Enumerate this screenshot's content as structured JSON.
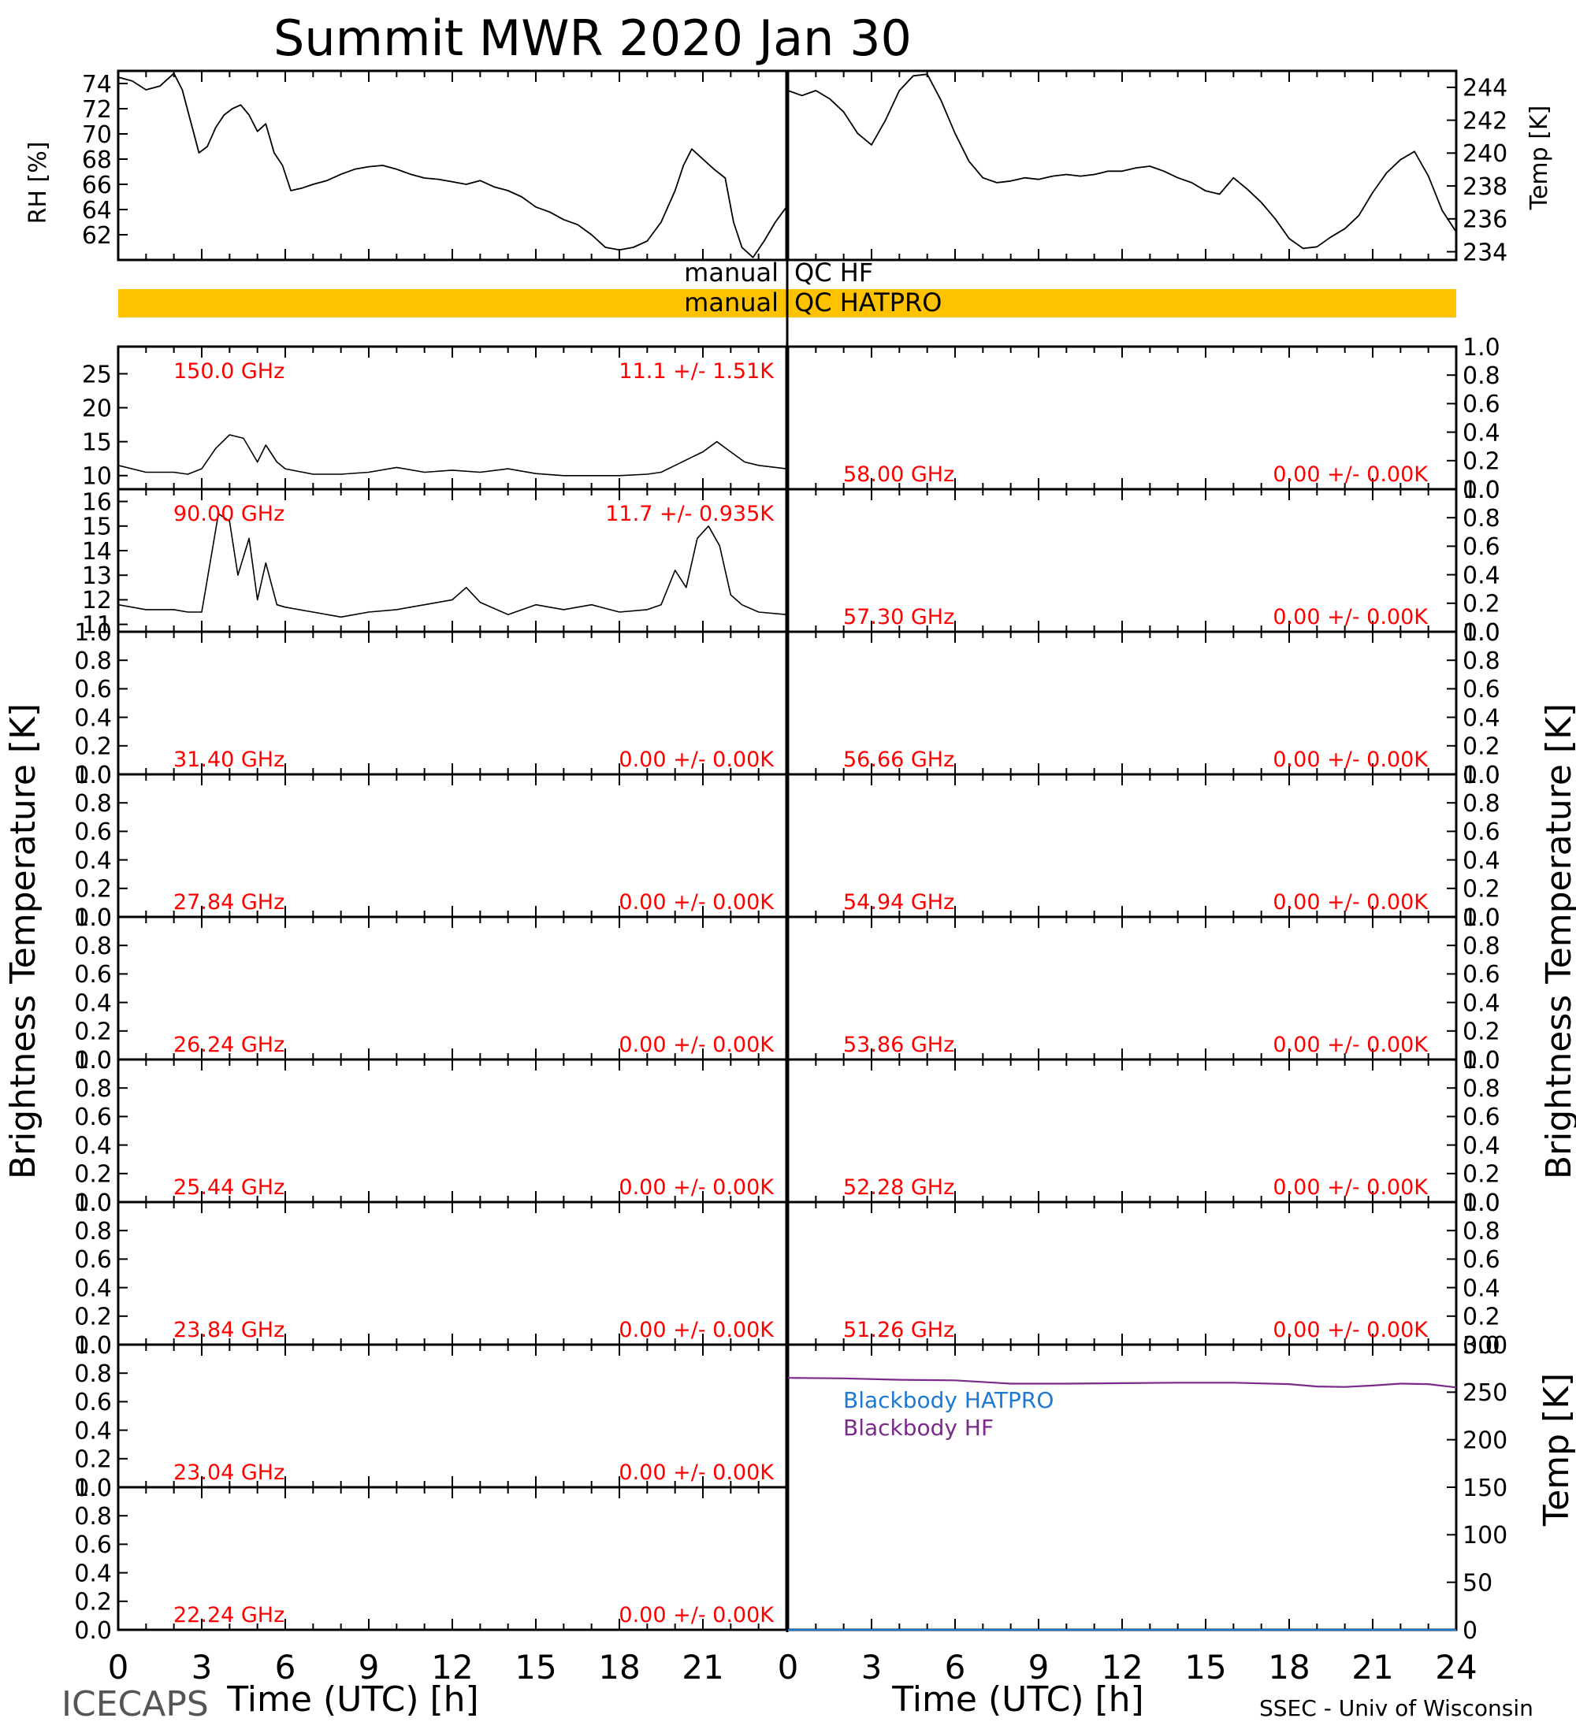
{
  "title": "Summit MWR 2020 Jan 30",
  "footer": {
    "left_label": "ICECAPS",
    "credit": "SSEC - Univ of Wisconsin",
    "xlabel": "Time (UTC) [h]"
  },
  "axis_labels": {
    "rh": "RH [%]",
    "temp": "Temp [K]",
    "tb": "Brightness Temperature [K]",
    "bb_temp": "Temp [K]"
  },
  "colors": {
    "qc_bar": "#FFC200",
    "freq_text": "#FF0000",
    "bb_hatpro": "#1E78D2",
    "bb_hf": "#7A2A8A",
    "trace": "#000000"
  },
  "qc": {
    "hf": {
      "left": "manual",
      "right": "QC HF",
      "flagged": false
    },
    "hatpro": {
      "left": "manual",
      "right": "QC HATPRO",
      "flagged": true
    }
  },
  "chart_data": [
    {
      "type": "line",
      "panel": "rh",
      "xlim": [
        0,
        24
      ],
      "ylim": [
        60,
        75
      ],
      "yticks": [
        62,
        64,
        66,
        68,
        70,
        72,
        74
      ],
      "x": [
        0,
        0.5,
        1,
        1.5,
        2,
        2.3,
        2.6,
        2.9,
        3.2,
        3.5,
        3.8,
        4.1,
        4.4,
        4.7,
        5.0,
        5.3,
        5.6,
        5.9,
        6.2,
        6.6,
        7.0,
        7.5,
        8,
        8.5,
        9,
        9.5,
        10,
        10.5,
        11,
        11.5,
        12,
        12.5,
        13,
        13.5,
        14,
        14.5,
        15,
        15.5,
        16,
        16.5,
        17,
        17.5,
        18,
        18.5,
        19,
        19.5,
        20,
        20.3,
        20.6,
        21.0,
        21.4,
        21.8,
        22.1,
        22.4,
        22.8,
        23.2,
        23.6,
        24
      ],
      "y": [
        74.5,
        74.2,
        73.5,
        73.8,
        74.8,
        73.5,
        71,
        68.5,
        69,
        70.5,
        71.5,
        72,
        72.3,
        71.5,
        70.2,
        70.8,
        68.5,
        67.5,
        65.5,
        65.7,
        66,
        66.3,
        66.8,
        67.2,
        67.4,
        67.5,
        67.2,
        66.8,
        66.5,
        66.4,
        66.2,
        66,
        66.3,
        65.8,
        65.5,
        65,
        64.2,
        63.8,
        63.2,
        62.8,
        62,
        61,
        60.8,
        61,
        61.5,
        63,
        65.5,
        67.5,
        68.8,
        68,
        67.2,
        66.5,
        63,
        61,
        60.2,
        61.5,
        63,
        64.2
      ],
      "series_color": "#000000"
    },
    {
      "type": "line",
      "panel": "temp",
      "xlim": [
        0,
        24
      ],
      "ylim": [
        233.5,
        245
      ],
      "yticks": [
        234,
        236,
        238,
        240,
        242,
        244
      ],
      "x": [
        0,
        0.5,
        1,
        1.5,
        2,
        2.5,
        3,
        3.5,
        4,
        4.5,
        5,
        5.5,
        6,
        6.5,
        7,
        7.5,
        8,
        8.5,
        9,
        9.5,
        10,
        10.5,
        11,
        11.5,
        12,
        12.5,
        13,
        13.5,
        14,
        14.5,
        15,
        15.5,
        16,
        16.5,
        17,
        17.5,
        18,
        18.5,
        19,
        19.5,
        20,
        20.5,
        21,
        21.5,
        22,
        22.5,
        23,
        23.5,
        24
      ],
      "y": [
        243.8,
        243.5,
        243.8,
        243.3,
        242.5,
        241.2,
        240.5,
        242,
        243.8,
        244.7,
        244.8,
        243.2,
        241.2,
        239.5,
        238.5,
        238.2,
        238.3,
        238.5,
        238.4,
        238.6,
        238.7,
        238.6,
        238.7,
        238.9,
        238.9,
        239.1,
        239.2,
        238.9,
        238.5,
        238.2,
        237.7,
        237.5,
        238.5,
        237.8,
        237,
        236,
        234.8,
        234.2,
        234.3,
        234.9,
        235.4,
        236.2,
        237.6,
        238.8,
        239.6,
        240.1,
        238.6,
        236.5,
        235.2
      ],
      "series_color": "#000000"
    },
    {
      "type": "line",
      "panel": "tb",
      "side": "left",
      "freq_label": "150.0 GHz",
      "stats_label": "11.1 +/-  1.51K",
      "ylim": [
        8,
        29
      ],
      "yticks": [
        10,
        15,
        20,
        25
      ],
      "x": [
        0,
        1,
        2,
        2.5,
        3,
        3.5,
        4,
        4.5,
        5,
        5.3,
        5.7,
        6,
        7,
        8,
        9,
        10,
        11,
        12,
        13,
        14,
        15,
        16,
        17,
        18,
        19,
        19.5,
        20,
        20.5,
        21,
        21.5,
        22,
        22.5,
        23,
        24
      ],
      "y": [
        11.5,
        10.5,
        10.5,
        10.2,
        11,
        14,
        16,
        15.5,
        12,
        14.5,
        12,
        11,
        10.2,
        10.2,
        10.5,
        11.2,
        10.5,
        10.8,
        10.5,
        11,
        10.3,
        10,
        10,
        10,
        10.2,
        10.5,
        11.5,
        12.5,
        13.5,
        15,
        13.5,
        12,
        11.5,
        11
      ],
      "series_color": "#000000"
    },
    {
      "type": "line",
      "panel": "tb",
      "side": "left",
      "freq_label": "90.00 GHz",
      "stats_label": "11.7 +/- 0.935K",
      "ylim": [
        10.7,
        16.5
      ],
      "yticks": [
        11,
        12,
        13,
        14,
        15,
        16
      ],
      "x": [
        0,
        1,
        2,
        2.5,
        3,
        3.3,
        3.6,
        4,
        4.3,
        4.7,
        5,
        5.3,
        5.7,
        6,
        7,
        8,
        9,
        10,
        11,
        12,
        12.5,
        13,
        14,
        15,
        16,
        17,
        18,
        19,
        19.5,
        20,
        20.4,
        20.8,
        21.2,
        21.6,
        22,
        22.4,
        23,
        24
      ],
      "y": [
        11.8,
        11.6,
        11.6,
        11.5,
        11.5,
        13.5,
        15.5,
        15.2,
        13,
        14.5,
        12,
        13.5,
        11.8,
        11.7,
        11.5,
        11.3,
        11.5,
        11.6,
        11.8,
        12,
        12.5,
        11.9,
        11.4,
        11.8,
        11.6,
        11.8,
        11.5,
        11.6,
        11.8,
        13.2,
        12.5,
        14.5,
        15,
        14.2,
        12.2,
        11.8,
        11.5,
        11.4
      ],
      "series_color": "#000000"
    },
    {
      "type": "line",
      "panel": "tb",
      "side": "left",
      "freq_label": "31.40 GHz",
      "stats_label": "0.00 +/-  0.00K",
      "ylim": [
        0,
        1
      ],
      "x": [],
      "y": []
    },
    {
      "type": "line",
      "panel": "tb",
      "side": "left",
      "freq_label": "27.84 GHz",
      "stats_label": "0.00 +/-  0.00K",
      "ylim": [
        0,
        1
      ],
      "x": [],
      "y": []
    },
    {
      "type": "line",
      "panel": "tb",
      "side": "left",
      "freq_label": "26.24 GHz",
      "stats_label": "0.00 +/-  0.00K",
      "ylim": [
        0,
        1
      ],
      "x": [],
      "y": []
    },
    {
      "type": "line",
      "panel": "tb",
      "side": "left",
      "freq_label": "25.44 GHz",
      "stats_label": "0.00 +/-  0.00K",
      "ylim": [
        0,
        1
      ],
      "x": [],
      "y": []
    },
    {
      "type": "line",
      "panel": "tb",
      "side": "left",
      "freq_label": "23.84 GHz",
      "stats_label": "0.00 +/-  0.00K",
      "ylim": [
        0,
        1
      ],
      "x": [],
      "y": []
    },
    {
      "type": "line",
      "panel": "tb",
      "side": "left",
      "freq_label": "23.04 GHz",
      "stats_label": "0.00 +/-  0.00K",
      "ylim": [
        0,
        1
      ],
      "x": [],
      "y": []
    },
    {
      "type": "line",
      "panel": "tb",
      "side": "left",
      "freq_label": "22.24 GHz",
      "stats_label": "0.00 +/-  0.00K",
      "ylim": [
        0,
        1
      ],
      "x": [],
      "y": []
    },
    {
      "type": "line",
      "panel": "tb",
      "side": "right",
      "freq_label": "58.00 GHz",
      "stats_label": "0.00 +/-  0.00K",
      "ylim": [
        0,
        1
      ],
      "x": [],
      "y": []
    },
    {
      "type": "line",
      "panel": "tb",
      "side": "right",
      "freq_label": "57.30 GHz",
      "stats_label": "0.00 +/-  0.00K",
      "ylim": [
        0,
        1
      ],
      "x": [],
      "y": []
    },
    {
      "type": "line",
      "panel": "tb",
      "side": "right",
      "freq_label": "56.66 GHz",
      "stats_label": "0.00 +/-  0.00K",
      "ylim": [
        0,
        1
      ],
      "x": [],
      "y": []
    },
    {
      "type": "line",
      "panel": "tb",
      "side": "right",
      "freq_label": "54.94 GHz",
      "stats_label": "0.00 +/-  0.00K",
      "ylim": [
        0,
        1
      ],
      "x": [],
      "y": []
    },
    {
      "type": "line",
      "panel": "tb",
      "side": "right",
      "freq_label": "53.86 GHz",
      "stats_label": "0.00 +/-  0.00K",
      "ylim": [
        0,
        1
      ],
      "x": [],
      "y": []
    },
    {
      "type": "line",
      "panel": "tb",
      "side": "right",
      "freq_label": "52.28 GHz",
      "stats_label": "0.00 +/-  0.00K",
      "ylim": [
        0,
        1
      ],
      "x": [],
      "y": []
    },
    {
      "type": "line",
      "panel": "tb",
      "side": "right",
      "freq_label": "51.26 GHz",
      "stats_label": "0.00 +/-  0.00K",
      "ylim": [
        0,
        1
      ],
      "x": [],
      "y": []
    },
    {
      "type": "line",
      "panel": "blackbody",
      "xlim": [
        0,
        24
      ],
      "ylim": [
        0,
        300
      ],
      "yticks": [
        0,
        50,
        100,
        150,
        200,
        250,
        300
      ],
      "series": [
        {
          "name": "Blackbody HATPRO",
          "color": "#1E78D2",
          "x": [
            0,
            24
          ],
          "y": [
            0,
            0
          ]
        },
        {
          "name": "Blackbody HF",
          "color": "#7A2A8A",
          "x": [
            0,
            2,
            4,
            6,
            8,
            10,
            12,
            14,
            16,
            18,
            19,
            20,
            21,
            22,
            23,
            24
          ],
          "y": [
            265,
            264.5,
            263,
            262.5,
            259,
            259,
            259.5,
            260,
            260,
            258.5,
            256,
            255.5,
            257,
            259,
            258.5,
            255
          ]
        }
      ]
    }
  ],
  "shared_x": {
    "range": [
      0,
      24
    ],
    "left_ticks": [
      "0",
      "3",
      "6",
      "9",
      "12",
      "15",
      "18",
      "21"
    ],
    "right_ticks": [
      "0",
      "3",
      "6",
      "9",
      "12",
      "15",
      "18",
      "21",
      "24"
    ]
  },
  "unit_ticks": [
    "0.0",
    "0.2",
    "0.4",
    "0.6",
    "0.8",
    "1.0"
  ]
}
